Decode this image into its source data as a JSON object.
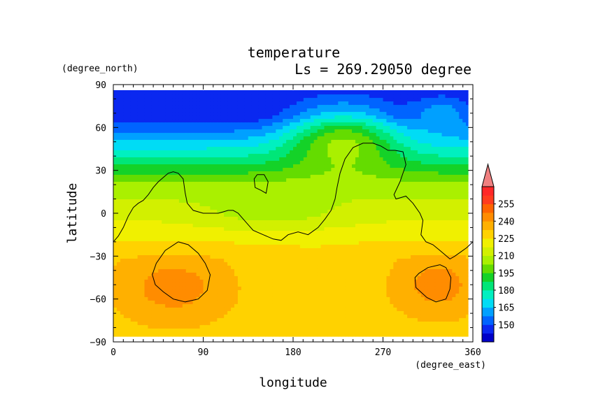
{
  "chart_data": {
    "type": "heatmap",
    "title": "temperature",
    "subtitle": "Ls = 269.29050 degree",
    "xlabel": "longitude",
    "ylabel": "latitude",
    "x_unit": "(degree_east)",
    "y_unit": "(degree_north)",
    "xlim": [
      0,
      360
    ],
    "ylim": [
      -90,
      90
    ],
    "x_ticks": [
      "0",
      "90",
      "180",
      "270",
      "360"
    ],
    "y_ticks": [
      "90",
      "60",
      "30",
      "0",
      "−30",
      "−60",
      "−90"
    ],
    "x_tick_values": [
      0,
      90,
      180,
      270,
      360
    ],
    "y_tick_values": [
      90,
      60,
      30,
      0,
      -30,
      -60,
      -90
    ],
    "colorbar": {
      "levels": [
        135,
        142.5,
        150,
        157.5,
        165,
        172.5,
        180,
        187.5,
        195,
        202.5,
        210,
        217.5,
        225,
        232.5,
        240,
        247.5,
        255,
        262.5
      ],
      "labels": [
        "150",
        "165",
        "180",
        "195",
        "210",
        "225",
        "240",
        "255"
      ],
      "colors": [
        "#0000c8",
        "#0a28f0",
        "#0064ff",
        "#00a0ff",
        "#00dcf5",
        "#00f0c0",
        "#00e678",
        "#14d228",
        "#64dc00",
        "#aaf000",
        "#d2f000",
        "#f0f000",
        "#ffd200",
        "#ffb000",
        "#ff8c00",
        "#ff6400",
        "#ff3c1e",
        "#ff2828"
      ],
      "overflow_color": "#f08080"
    },
    "latitudes": [
      85,
      75,
      65,
      55,
      45,
      35,
      25,
      15,
      5,
      -5,
      -15,
      -25,
      -35,
      -45,
      -55,
      -65,
      -75,
      -85
    ],
    "longitudes": [
      0,
      20,
      40,
      60,
      80,
      100,
      120,
      140,
      160,
      180,
      200,
      220,
      240,
      260,
      280,
      300,
      320,
      340,
      360
    ],
    "contour_lat_lon": [
      [
        [
          0,
          -20
        ],
        [
          5,
          -16
        ],
        [
          10,
          -10
        ],
        [
          15,
          -2
        ],
        [
          20,
          4
        ],
        [
          25,
          7
        ],
        [
          30,
          9
        ],
        [
          35,
          13
        ],
        [
          40,
          18
        ],
        [
          45,
          22
        ],
        [
          50,
          25
        ],
        [
          55,
          28
        ],
        [
          60,
          29
        ],
        [
          65,
          28
        ],
        [
          70,
          24
        ],
        [
          72,
          14
        ],
        [
          74,
          7
        ],
        [
          80,
          2
        ],
        [
          90,
          0
        ],
        [
          100,
          0
        ],
        [
          105,
          0
        ],
        [
          110,
          1
        ],
        [
          115,
          2
        ],
        [
          120,
          2
        ],
        [
          125,
          0
        ],
        [
          130,
          -4
        ],
        [
          135,
          -8
        ],
        [
          140,
          -12
        ],
        [
          150,
          -15
        ],
        [
          160,
          -18
        ],
        [
          168,
          -19
        ],
        [
          175,
          -15
        ],
        [
          185,
          -13
        ],
        [
          195,
          -15
        ],
        [
          205,
          -10
        ],
        [
          212,
          -4
        ],
        [
          218,
          2
        ],
        [
          222,
          10
        ],
        [
          224,
          18
        ],
        [
          227,
          28
        ],
        [
          232,
          38
        ],
        [
          240,
          46
        ],
        [
          250,
          49
        ],
        [
          260,
          49
        ],
        [
          268,
          47
        ],
        [
          275,
          44
        ],
        [
          282,
          44
        ],
        [
          290,
          43
        ],
        [
          293,
          34
        ],
        [
          287,
          22
        ],
        [
          281,
          13
        ],
        [
          283,
          10
        ],
        [
          293,
          12
        ],
        [
          300,
          7
        ],
        [
          307,
          0
        ],
        [
          310,
          -5
        ],
        [
          308,
          -15
        ],
        [
          313,
          -20
        ],
        [
          320,
          -22
        ],
        [
          327,
          -26
        ],
        [
          332,
          -29
        ],
        [
          337,
          -32
        ],
        [
          342,
          -30
        ],
        [
          348,
          -27
        ],
        [
          354,
          -24
        ],
        [
          360,
          -20
        ]
      ],
      [
        [
          144,
          27
        ],
        [
          151,
          27
        ],
        [
          155,
          22
        ],
        [
          153,
          14
        ],
        [
          148,
          16
        ],
        [
          142,
          18
        ],
        [
          141,
          24
        ],
        [
          144,
          27
        ]
      ],
      [
        [
          65,
          -20
        ],
        [
          75,
          -22
        ],
        [
          85,
          -28
        ],
        [
          92,
          -35
        ],
        [
          97,
          -43
        ],
        [
          94,
          -54
        ],
        [
          85,
          -60
        ],
        [
          72,
          -62
        ],
        [
          60,
          -60
        ],
        [
          50,
          -55
        ],
        [
          42,
          -50
        ],
        [
          39,
          -43
        ],
        [
          43,
          -35
        ],
        [
          52,
          -26
        ],
        [
          65,
          -20
        ]
      ],
      [
        [
          327,
          -36
        ],
        [
          333,
          -38
        ],
        [
          338,
          -45
        ],
        [
          337,
          -53
        ],
        [
          333,
          -60
        ],
        [
          323,
          -62
        ],
        [
          314,
          -59
        ],
        [
          303,
          -52
        ],
        [
          302,
          -45
        ],
        [
          306,
          -42
        ],
        [
          315,
          -38
        ],
        [
          327,
          -36
        ]
      ]
    ]
  }
}
